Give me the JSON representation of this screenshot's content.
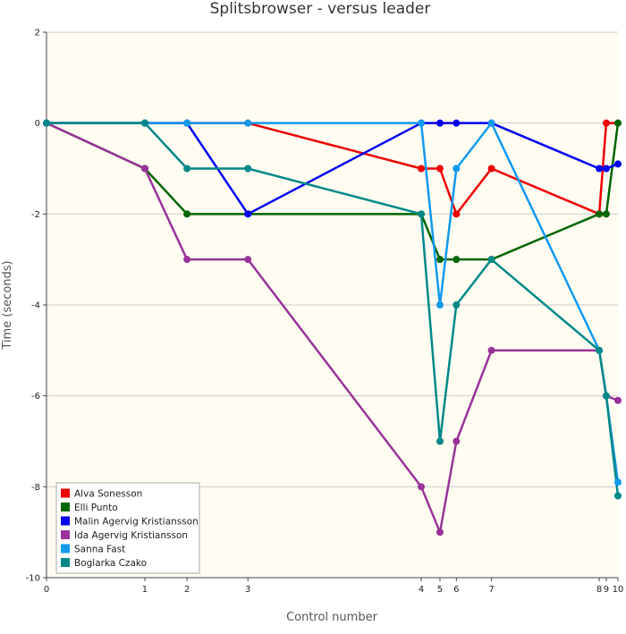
{
  "chart_data": {
    "type": "line",
    "title": "Splitsbrowser - versus leader",
    "xlabel": "Control number",
    "ylabel": "Time (seconds)",
    "ylim": [
      -10,
      2
    ],
    "y_ticks": [
      2,
      0,
      -2,
      -4,
      -6,
      -8,
      -10
    ],
    "x": [
      0,
      1,
      2,
      3,
      4,
      5,
      6,
      7,
      8,
      9,
      10
    ],
    "x_positions": [
      0,
      2.1,
      3.0,
      4.3,
      8.0,
      8.4,
      8.75,
      9.5,
      11.8,
      11.95,
      12.2
    ],
    "x_tick_labels": [
      "0",
      "1",
      "2",
      "3",
      "4",
      "5",
      "6",
      "7",
      "8",
      "9",
      "10"
    ],
    "grid": true,
    "legend_position": "bottom-left",
    "background_color": "#fffcf2",
    "series": [
      {
        "name": "Alva Sonesson",
        "color": "#ee0000",
        "values": [
          0,
          0,
          0,
          0,
          -1,
          -1,
          -2,
          -1,
          -2,
          0,
          0
        ]
      },
      {
        "name": "Elli Punto",
        "color": "#006600",
        "values": [
          0,
          -1,
          -2,
          -2,
          -2,
          -3,
          -3,
          -3,
          -2,
          -2,
          0
        ]
      },
      {
        "name": "Malin Agervig Kristiansson",
        "color": "#0000ee",
        "values": [
          0,
          0,
          0,
          -2,
          0,
          0,
          0,
          0,
          -1,
          -1,
          -0.9
        ]
      },
      {
        "name": "Ida Agervig Kristiansson",
        "color": "#993399",
        "values": [
          0,
          -1,
          -3,
          -3,
          -8,
          -9,
          -7,
          -5,
          -5,
          -6,
          -6.1
        ]
      },
      {
        "name": "Sanna Fast",
        "color": "#1199ee",
        "values": [
          0,
          0,
          0,
          0,
          0,
          -4,
          -1,
          0,
          -5,
          -6,
          -7.9
        ]
      },
      {
        "name": "Boglarka Czako",
        "color": "#008888",
        "values": [
          0,
          0,
          -1,
          -1,
          -2,
          -7,
          -4,
          -3,
          -5,
          -6,
          -8.2
        ]
      }
    ]
  }
}
